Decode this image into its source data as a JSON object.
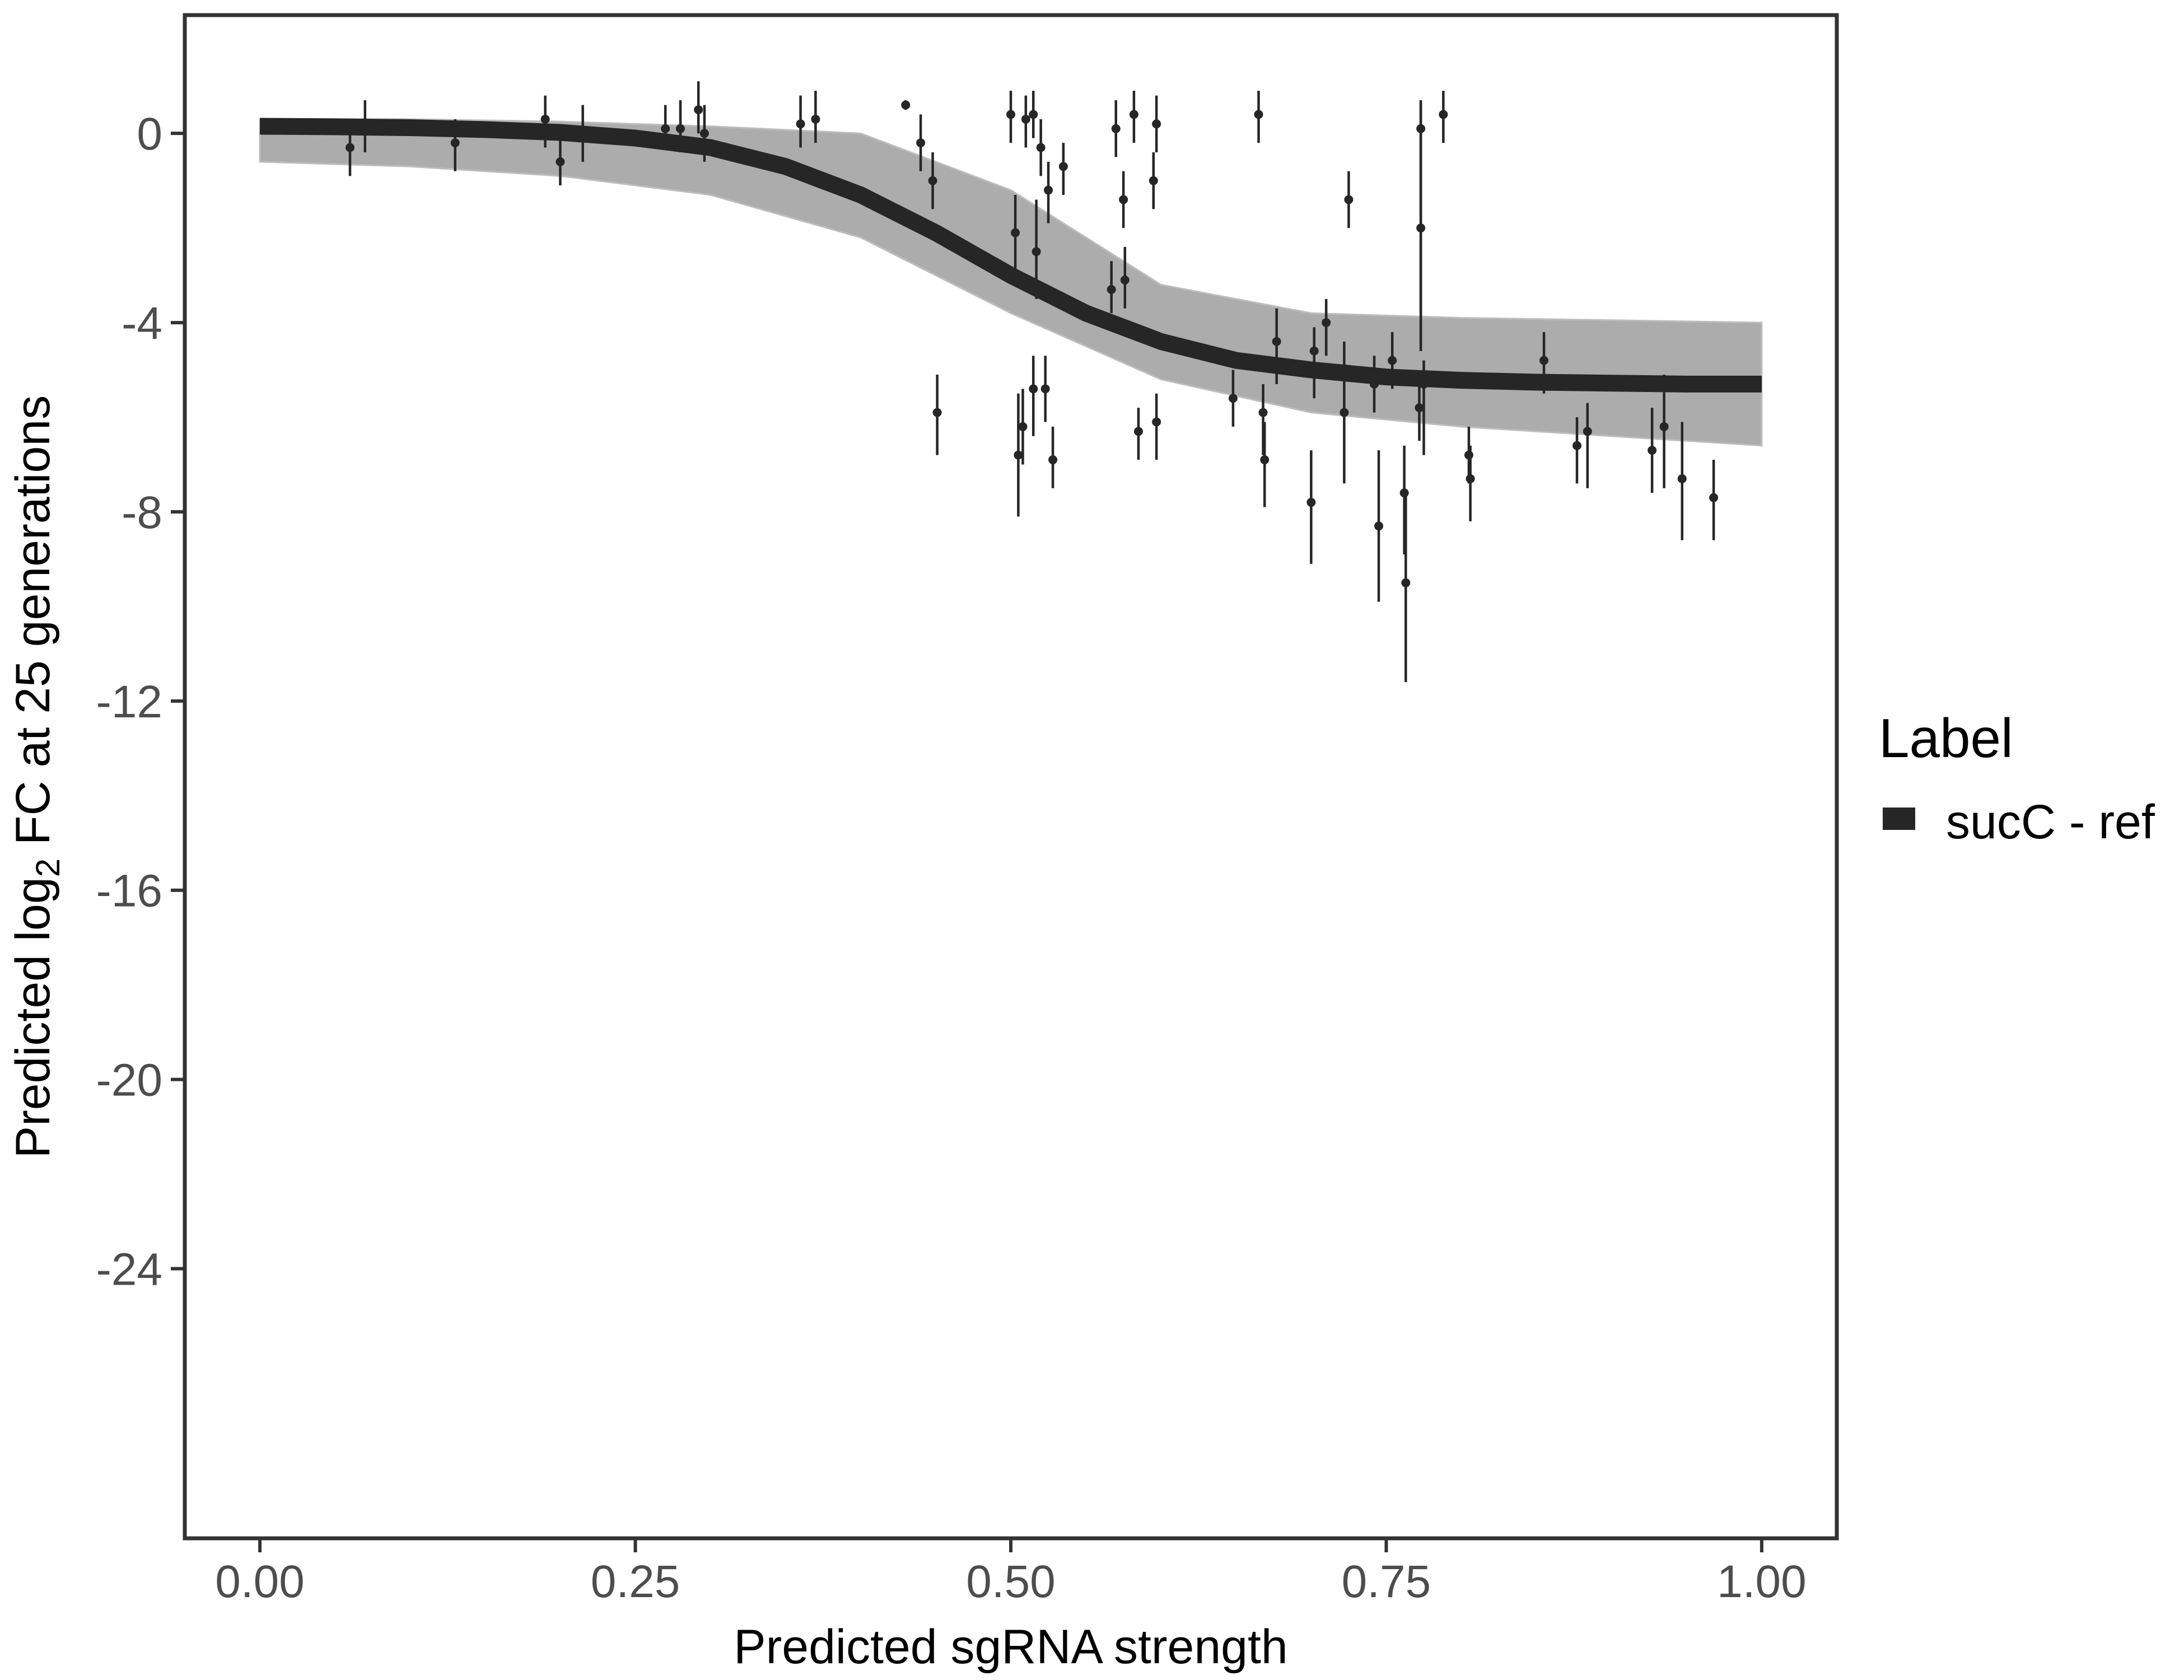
{
  "chart_data": {
    "type": "scatter",
    "xlabel": "Predicted sgRNA strength",
    "ylabel_prefix": "Predicted  log",
    "ylabel_sub": "2",
    "ylabel_suffix": " FC at 25 generations",
    "xlim": [
      -0.05,
      1.05
    ],
    "ylim": [
      -29.7,
      2.5
    ],
    "x_ticks": [
      0.0,
      0.25,
      0.5,
      0.75,
      1.0
    ],
    "x_tick_labels": [
      "0.00",
      "0.25",
      "0.50",
      "0.75",
      "1.00"
    ],
    "y_ticks": [
      0,
      -4,
      -8,
      -12,
      -16,
      -20,
      -24
    ],
    "y_tick_labels": [
      "0",
      "-4",
      "-8",
      "-12",
      "-16",
      "-20",
      "-24"
    ],
    "grid": false,
    "legend": {
      "title": "Label",
      "position": "right",
      "entries": [
        {
          "label": "sucC - ref",
          "color": "#262626"
        }
      ]
    },
    "fit_curve": {
      "name": "sucC - ref",
      "color": "#262626",
      "x": [
        0.0,
        0.05,
        0.1,
        0.15,
        0.2,
        0.25,
        0.3,
        0.35,
        0.4,
        0.45,
        0.5,
        0.55,
        0.6,
        0.65,
        0.7,
        0.75,
        0.8,
        0.85,
        0.9,
        0.95,
        1.0
      ],
      "y": [
        0.15,
        0.14,
        0.12,
        0.08,
        0.02,
        -0.1,
        -0.3,
        -0.7,
        -1.3,
        -2.1,
        -3.0,
        -3.8,
        -4.4,
        -4.8,
        -5.0,
        -5.15,
        -5.22,
        -5.26,
        -5.28,
        -5.3,
        -5.3
      ]
    },
    "posterior_band": {
      "color": "#9e9e9e",
      "x": [
        0.0,
        0.1,
        0.2,
        0.3,
        0.4,
        0.5,
        0.55,
        0.6,
        0.7,
        0.8,
        0.9,
        1.0
      ],
      "upper": [
        0.3,
        0.3,
        0.25,
        0.15,
        0.0,
        -1.2,
        -2.2,
        -3.2,
        -3.8,
        -3.9,
        -3.95,
        -4.0
      ],
      "lower": [
        -0.6,
        -0.7,
        -0.9,
        -1.3,
        -2.2,
        -3.8,
        -4.5,
        -5.2,
        -5.9,
        -6.2,
        -6.4,
        -6.6
      ]
    },
    "points": [
      {
        "x": 0.06,
        "y": -0.3,
        "lo": -0.9,
        "hi": 0.3
      },
      {
        "x": 0.07,
        "y": 0.1,
        "lo": -0.4,
        "hi": 0.7
      },
      {
        "x": 0.13,
        "y": -0.2,
        "lo": -0.8,
        "hi": 0.3
      },
      {
        "x": 0.19,
        "y": 0.3,
        "lo": -0.3,
        "hi": 0.8
      },
      {
        "x": 0.2,
        "y": -0.6,
        "lo": -1.1,
        "hi": -0.1
      },
      {
        "x": 0.215,
        "y": 0.0,
        "lo": -0.6,
        "hi": 0.6
      },
      {
        "x": 0.27,
        "y": 0.1,
        "lo": -0.3,
        "hi": 0.6
      },
      {
        "x": 0.28,
        "y": 0.1,
        "lo": -0.4,
        "hi": 0.7
      },
      {
        "x": 0.292,
        "y": 0.5,
        "lo": 0.0,
        "hi": 1.1
      },
      {
        "x": 0.296,
        "y": 0.0,
        "lo": -0.6,
        "hi": 0.6
      },
      {
        "x": 0.36,
        "y": 0.2,
        "lo": -0.3,
        "hi": 0.8
      },
      {
        "x": 0.37,
        "y": 0.3,
        "lo": -0.2,
        "hi": 0.9
      },
      {
        "x": 0.43,
        "y": 0.6,
        "lo": 0.5,
        "hi": 0.7
      },
      {
        "x": 0.44,
        "y": -0.2,
        "lo": -0.8,
        "hi": 0.4
      },
      {
        "x": 0.448,
        "y": -1.0,
        "lo": -1.6,
        "hi": -0.4
      },
      {
        "x": 0.451,
        "y": -5.9,
        "lo": -6.8,
        "hi": -5.1
      },
      {
        "x": 0.5,
        "y": 0.4,
        "lo": -0.2,
        "hi": 0.9
      },
      {
        "x": 0.503,
        "y": -2.1,
        "lo": -3.0,
        "hi": -1.3
      },
      {
        "x": 0.505,
        "y": -6.8,
        "lo": -8.1,
        "hi": -5.5
      },
      {
        "x": 0.508,
        "y": -6.2,
        "lo": -7.0,
        "hi": -5.4
      },
      {
        "x": 0.51,
        "y": 0.3,
        "lo": -0.3,
        "hi": 0.8
      },
      {
        "x": 0.515,
        "y": 0.4,
        "lo": -0.1,
        "hi": 0.9
      },
      {
        "x": 0.515,
        "y": -5.4,
        "lo": -6.4,
        "hi": -4.7
      },
      {
        "x": 0.517,
        "y": -2.5,
        "lo": -3.5,
        "hi": -1.4
      },
      {
        "x": 0.52,
        "y": -0.3,
        "lo": -0.9,
        "hi": 0.3
      },
      {
        "x": 0.523,
        "y": -5.4,
        "lo": -6.1,
        "hi": -4.7
      },
      {
        "x": 0.525,
        "y": -1.2,
        "lo": -1.9,
        "hi": -0.6
      },
      {
        "x": 0.528,
        "y": -6.9,
        "lo": -7.5,
        "hi": -6.2
      },
      {
        "x": 0.535,
        "y": -0.7,
        "lo": -1.3,
        "hi": -0.2
      },
      {
        "x": 0.567,
        "y": -3.3,
        "lo": -3.8,
        "hi": -2.7
      },
      {
        "x": 0.57,
        "y": 0.1,
        "lo": -0.5,
        "hi": 0.7
      },
      {
        "x": 0.575,
        "y": -1.4,
        "lo": -2.0,
        "hi": -0.8
      },
      {
        "x": 0.576,
        "y": -3.1,
        "lo": -3.7,
        "hi": -2.4
      },
      {
        "x": 0.582,
        "y": 0.4,
        "lo": -0.2,
        "hi": 0.9
      },
      {
        "x": 0.585,
        "y": -6.3,
        "lo": -6.9,
        "hi": -5.8
      },
      {
        "x": 0.595,
        "y": -1.0,
        "lo": -1.6,
        "hi": -0.4
      },
      {
        "x": 0.597,
        "y": 0.2,
        "lo": -0.4,
        "hi": 0.8
      },
      {
        "x": 0.597,
        "y": -6.1,
        "lo": -6.9,
        "hi": -5.5
      },
      {
        "x": 0.648,
        "y": -5.6,
        "lo": -6.2,
        "hi": -5.0
      },
      {
        "x": 0.665,
        "y": 0.4,
        "lo": -0.2,
        "hi": 0.9
      },
      {
        "x": 0.668,
        "y": -5.9,
        "lo": -6.8,
        "hi": -5.3
      },
      {
        "x": 0.669,
        "y": -6.9,
        "lo": -7.9,
        "hi": -6.1
      },
      {
        "x": 0.677,
        "y": -4.4,
        "lo": -5.3,
        "hi": -3.7
      },
      {
        "x": 0.7,
        "y": -7.8,
        "lo": -9.1,
        "hi": -6.7
      },
      {
        "x": 0.702,
        "y": -4.6,
        "lo": -5.6,
        "hi": -4.1
      },
      {
        "x": 0.71,
        "y": -4.0,
        "lo": -4.7,
        "hi": -3.5
      },
      {
        "x": 0.722,
        "y": -5.9,
        "lo": -7.4,
        "hi": -4.4
      },
      {
        "x": 0.725,
        "y": -1.4,
        "lo": -2.0,
        "hi": -0.8
      },
      {
        "x": 0.742,
        "y": -5.3,
        "lo": -5.9,
        "hi": -4.7
      },
      {
        "x": 0.745,
        "y": -8.3,
        "lo": -9.9,
        "hi": -6.7
      },
      {
        "x": 0.754,
        "y": -4.8,
        "lo": -5.4,
        "hi": -4.2
      },
      {
        "x": 0.762,
        "y": -7.6,
        "lo": -8.9,
        "hi": -6.6
      },
      {
        "x": 0.763,
        "y": -9.5,
        "lo": -11.6,
        "hi": -7.6
      },
      {
        "x": 0.772,
        "y": -5.8,
        "lo": -6.5,
        "hi": -5.1
      },
      {
        "x": 0.773,
        "y": 0.1,
        "lo": -4.6,
        "hi": 0.7
      },
      {
        "x": 0.773,
        "y": -2.0,
        "lo": -4.6,
        "hi": 0.7
      },
      {
        "x": 0.775,
        "y": -5.3,
        "lo": -6.8,
        "hi": -4.8
      },
      {
        "x": 0.788,
        "y": 0.4,
        "lo": -0.2,
        "hi": 0.9
      },
      {
        "x": 0.805,
        "y": -6.8,
        "lo": -7.4,
        "hi": -6.2
      },
      {
        "x": 0.806,
        "y": -7.3,
        "lo": -8.2,
        "hi": -6.6
      },
      {
        "x": 0.855,
        "y": -4.8,
        "lo": -5.5,
        "hi": -4.2
      },
      {
        "x": 0.877,
        "y": -6.6,
        "lo": -7.4,
        "hi": -6.0
      },
      {
        "x": 0.884,
        "y": -6.3,
        "lo": -7.5,
        "hi": -5.7
      },
      {
        "x": 0.927,
        "y": -6.7,
        "lo": -7.6,
        "hi": -5.8
      },
      {
        "x": 0.935,
        "y": -6.2,
        "lo": -7.5,
        "hi": -5.1
      },
      {
        "x": 0.947,
        "y": -7.3,
        "lo": -8.6,
        "hi": -6.1
      },
      {
        "x": 0.968,
        "y": -7.7,
        "lo": -8.6,
        "hi": -6.9
      }
    ]
  }
}
